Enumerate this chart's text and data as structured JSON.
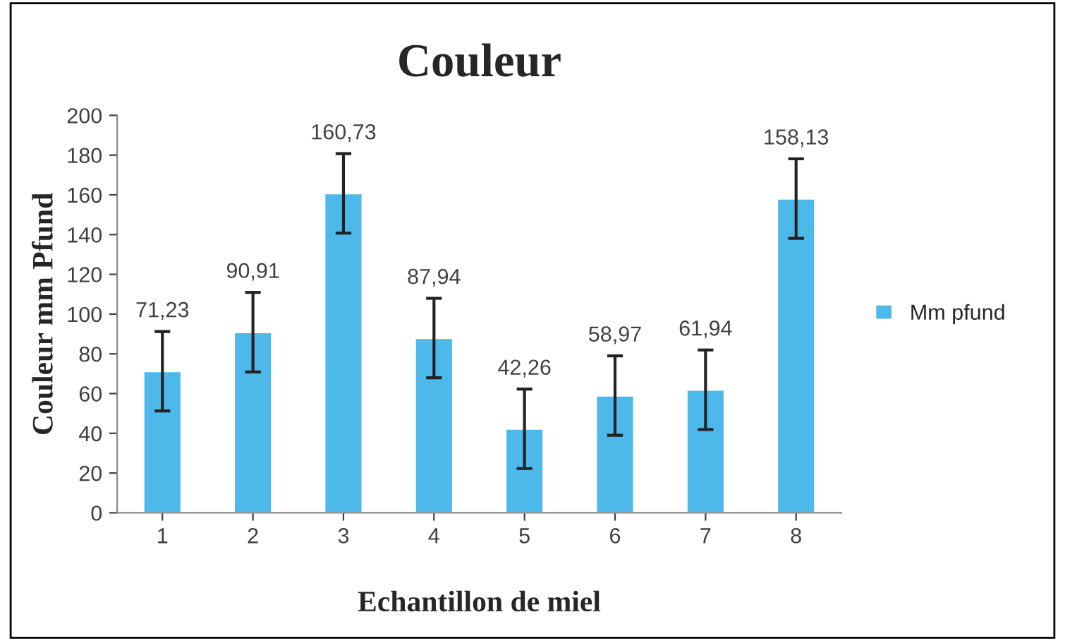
{
  "chart_data": {
    "type": "bar",
    "title": "Couleur",
    "xlabel": "Echantillon de miel",
    "ylabel": "Couleur mm Pfund",
    "categories": [
      "1",
      "2",
      "3",
      "4",
      "5",
      "6",
      "7",
      "8"
    ],
    "series": [
      {
        "name": "Mm pfund",
        "color": "#4db8ea",
        "values": [
          71.23,
          90.91,
          160.73,
          87.94,
          42.26,
          58.97,
          61.94,
          158.13
        ],
        "errors": [
          20,
          20,
          20,
          20,
          20,
          20,
          20,
          20
        ],
        "value_labels": [
          "71,23",
          "90,91",
          "160,73",
          "87,94",
          "42,26",
          "58,97",
          "61,94",
          "158,13"
        ]
      }
    ],
    "ylim": [
      0,
      200
    ],
    "yticks": [
      0,
      20,
      40,
      60,
      80,
      100,
      120,
      140,
      160,
      180,
      200
    ],
    "grid": false,
    "legend": "right"
  }
}
